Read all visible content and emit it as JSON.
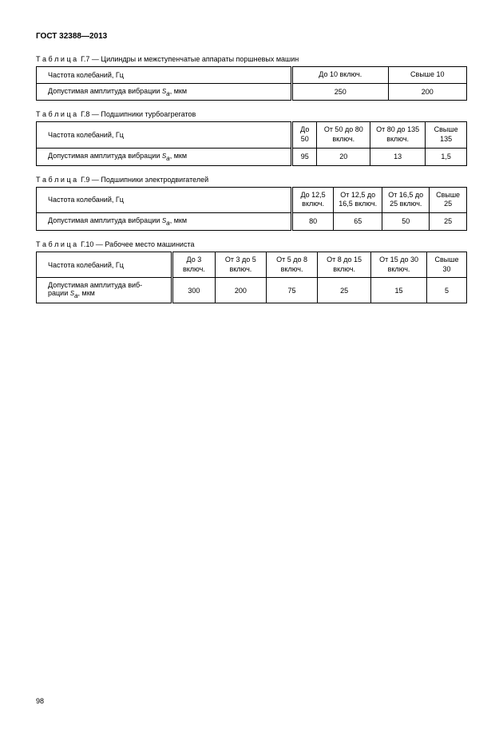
{
  "doc_header": "ГОСТ 32388—2013",
  "page_number": "98",
  "table_word": "Т а б л и ц а",
  "freq_label": "Частота колебаний, Гц",
  "amp_label_pre": "Допустимая амплитуда вибрации ",
  "amp_label_sym": "S",
  "amp_label_sub": "a",
  "amp_label_post": ", мкм",
  "t7": {
    "num": "Г.7",
    "title": " — Цилиндры и межступенчатые аппараты поршневых машин",
    "cols": [
      "До 10 включ.",
      "Свыше 10"
    ],
    "vals": [
      "250",
      "200"
    ],
    "label_width": "320",
    "col_count": 2
  },
  "t8": {
    "num": "Г.8",
    "title": " — Подшипники турбоагрегатов",
    "cols": [
      "До 50",
      "От 50 до 80 включ.",
      "От 80 до 135 включ.",
      "Свыше 135"
    ],
    "vals": [
      "95",
      "20",
      "13",
      "1,5"
    ],
    "label_width": "320",
    "col_count": 4
  },
  "t9": {
    "num": "Г.9",
    "title": " — Подшипники электродвигателей",
    "cols": [
      "До 12,5 включ.",
      "От 12,5 до 16,5 включ.",
      "От 16,5 до 25 включ.",
      "Свыше 25"
    ],
    "vals": [
      "80",
      "65",
      "50",
      "25"
    ],
    "label_width": "320",
    "col_count": 4
  },
  "t10": {
    "num": "Г.10",
    "title": " — Рабочее место машиниста",
    "amp_label_line1": "Допустимая амплитуда виб-",
    "amp_label_line2_pre": "рации ",
    "cols": [
      "До 3 включ.",
      "От 3 до 5 включ.",
      "От 5 до 8 включ.",
      "От 8 до 15 включ.",
      "От 15 до 30 включ.",
      "Свыше 30"
    ],
    "vals": [
      "300",
      "200",
      "75",
      "25",
      "15",
      "5"
    ],
    "label_width": "170",
    "col_count": 6
  }
}
